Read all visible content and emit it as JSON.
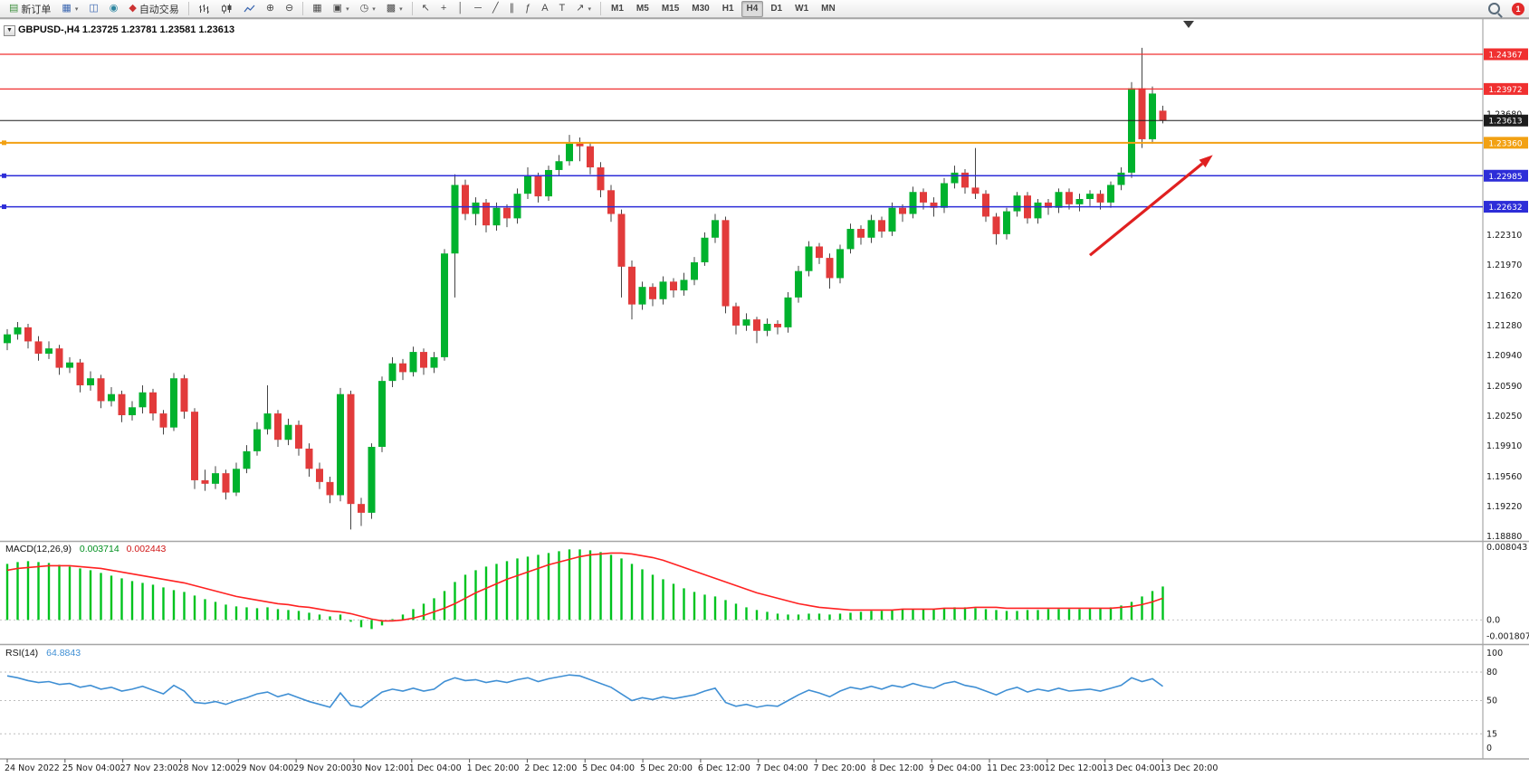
{
  "toolbar": {
    "new_order_label": "新订单",
    "autotrading_label": "自动交易",
    "timeframes": [
      "M1",
      "M5",
      "M15",
      "M30",
      "H1",
      "H4",
      "D1",
      "W1",
      "MN"
    ],
    "active_timeframe": "H4",
    "notification_count": "1",
    "icons": {
      "new_order": "▤",
      "charts": "▦",
      "profiles": "◫",
      "alerts": "◉",
      "autotrading": "◆",
      "zoom_in": "⊕",
      "zoom_out": "⊖",
      "tile_windows": "▦",
      "new_chart": "▣",
      "period": "◷",
      "templates": "▩",
      "cursor": "↖",
      "crosshair": "+",
      "vline": "│",
      "hline": "─",
      "trendline": "╱",
      "channel": "∥",
      "fibonacci": "ƒ",
      "text": "A",
      "label": "T",
      "arrows": "↗",
      "caret": "▾",
      "dropdown": "▼"
    }
  },
  "chart": {
    "title": "GBPUSD-,H4",
    "ohlc": "1.23725 1.23781 1.23581 1.23613"
  },
  "chart_data": {
    "type": "candlestick",
    "symbol": "GBPUSD-",
    "period": "H4",
    "current": {
      "open": 1.23725,
      "high": 1.23781,
      "low": 1.23581,
      "close": 1.23613
    },
    "price_range": [
      1.1884,
      1.24758
    ],
    "colors": {
      "bull": "#00b22d",
      "bear": "#e23b3b",
      "wick": "#444444",
      "bg": "#ffffff"
    },
    "candles": [
      [
        1.2108,
        1.2124,
        1.21,
        1.2118
      ],
      [
        1.2118,
        1.2132,
        1.2112,
        1.2126
      ],
      [
        1.2126,
        1.213,
        1.2102,
        1.211
      ],
      [
        1.211,
        1.2116,
        1.2088,
        1.2096
      ],
      [
        1.2096,
        1.211,
        1.209,
        1.2102
      ],
      [
        1.2102,
        1.2106,
        1.2072,
        1.208
      ],
      [
        1.208,
        1.2092,
        1.2074,
        1.2086
      ],
      [
        1.2086,
        1.209,
        1.2052,
        1.206
      ],
      [
        1.206,
        1.2076,
        1.2054,
        1.2068
      ],
      [
        1.2068,
        1.2072,
        1.2034,
        1.2042
      ],
      [
        1.2042,
        1.2058,
        1.2036,
        1.205
      ],
      [
        1.205,
        1.2054,
        1.2018,
        1.2026
      ],
      [
        1.2026,
        1.2042,
        1.202,
        1.2035
      ],
      [
        1.2035,
        1.206,
        1.2028,
        1.2052
      ],
      [
        1.2052,
        1.2056,
        1.202,
        1.2028
      ],
      [
        1.2028,
        1.2032,
        1.2004,
        1.2012
      ],
      [
        1.2012,
        1.2074,
        1.2008,
        1.2068
      ],
      [
        1.2068,
        1.2072,
        1.2022,
        1.203
      ],
      [
        1.203,
        1.2034,
        1.1942,
        1.1952
      ],
      [
        1.1952,
        1.1964,
        1.194,
        1.1948
      ],
      [
        1.1948,
        1.1968,
        1.1942,
        1.196
      ],
      [
        1.196,
        1.1964,
        1.193,
        1.1938
      ],
      [
        1.1938,
        1.1972,
        1.1934,
        1.1965
      ],
      [
        1.1965,
        1.1992,
        1.196,
        1.1985
      ],
      [
        1.1985,
        1.2018,
        1.198,
        1.201
      ],
      [
        1.201,
        1.206,
        1.2004,
        1.2028
      ],
      [
        1.2028,
        1.2032,
        1.199,
        1.1998
      ],
      [
        1.1998,
        1.2022,
        1.1992,
        1.2015
      ],
      [
        1.2015,
        1.202,
        1.198,
        1.1988
      ],
      [
        1.1988,
        1.1994,
        1.1956,
        1.1965
      ],
      [
        1.1965,
        1.1972,
        1.1942,
        1.195
      ],
      [
        1.195,
        1.1956,
        1.1926,
        1.1935
      ],
      [
        1.1935,
        1.2057,
        1.1928,
        1.205
      ],
      [
        1.205,
        1.2054,
        1.1896,
        1.1925
      ],
      [
        1.1925,
        1.1932,
        1.19,
        1.1915
      ],
      [
        1.1915,
        1.1994,
        1.1908,
        1.199
      ],
      [
        1.199,
        1.207,
        1.1984,
        1.2065
      ],
      [
        1.2065,
        1.2092,
        1.2058,
        1.2085
      ],
      [
        1.2085,
        1.209,
        1.2066,
        1.2075
      ],
      [
        1.2075,
        1.2104,
        1.207,
        1.2098
      ],
      [
        1.2098,
        1.2102,
        1.2072,
        1.208
      ],
      [
        1.208,
        1.2098,
        1.2074,
        1.2092
      ],
      [
        1.2092,
        1.2215,
        1.2088,
        1.221
      ],
      [
        1.221,
        1.23,
        1.216,
        1.2288
      ],
      [
        1.2288,
        1.2294,
        1.2248,
        1.2255
      ],
      [
        1.2255,
        1.2274,
        1.2242,
        1.2268
      ],
      [
        1.2268,
        1.2272,
        1.2234,
        1.2242
      ],
      [
        1.2242,
        1.2268,
        1.2236,
        1.2262
      ],
      [
        1.2262,
        1.2266,
        1.224,
        1.225
      ],
      [
        1.225,
        1.2284,
        1.2244,
        1.2278
      ],
      [
        1.2278,
        1.2308,
        1.2272,
        1.2298
      ],
      [
        1.2298,
        1.2302,
        1.2268,
        1.2275
      ],
      [
        1.2275,
        1.231,
        1.227,
        1.2305
      ],
      [
        1.2305,
        1.2322,
        1.2298,
        1.2315
      ],
      [
        1.2315,
        1.2345,
        1.231,
        1.2335
      ],
      [
        1.2335,
        1.2342,
        1.2315,
        1.2332
      ],
      [
        1.2332,
        1.2336,
        1.23,
        1.2308
      ],
      [
        1.2308,
        1.2314,
        1.2274,
        1.2282
      ],
      [
        1.2282,
        1.2288,
        1.2246,
        1.2255
      ],
      [
        1.2255,
        1.226,
        1.216,
        1.2195
      ],
      [
        1.2195,
        1.2202,
        1.2135,
        1.2152
      ],
      [
        1.2152,
        1.2178,
        1.2146,
        1.2172
      ],
      [
        1.2172,
        1.2176,
        1.215,
        1.2158
      ],
      [
        1.2158,
        1.2184,
        1.2152,
        1.2178
      ],
      [
        1.2178,
        1.2182,
        1.216,
        1.2168
      ],
      [
        1.2168,
        1.2188,
        1.2162,
        1.218
      ],
      [
        1.218,
        1.2206,
        1.2174,
        1.22
      ],
      [
        1.22,
        1.2234,
        1.2196,
        1.2228
      ],
      [
        1.2228,
        1.2255,
        1.2222,
        1.2248
      ],
      [
        1.2248,
        1.2252,
        1.2142,
        1.215
      ],
      [
        1.215,
        1.2154,
        1.2118,
        1.2128
      ],
      [
        1.2128,
        1.2142,
        1.2122,
        1.2135
      ],
      [
        1.2135,
        1.2138,
        1.2108,
        1.2122
      ],
      [
        1.2122,
        1.2136,
        1.2116,
        1.213
      ],
      [
        1.213,
        1.2134,
        1.2118,
        1.2126
      ],
      [
        1.2126,
        1.2166,
        1.212,
        1.216
      ],
      [
        1.216,
        1.2196,
        1.2154,
        1.219
      ],
      [
        1.219,
        1.2224,
        1.2184,
        1.2218
      ],
      [
        1.2218,
        1.2222,
        1.2198,
        1.2205
      ],
      [
        1.2205,
        1.221,
        1.217,
        1.2182
      ],
      [
        1.2182,
        1.222,
        1.2176,
        1.2215
      ],
      [
        1.2215,
        1.2244,
        1.221,
        1.2238
      ],
      [
        1.2238,
        1.2242,
        1.222,
        1.2228
      ],
      [
        1.2228,
        1.2254,
        1.2222,
        1.2248
      ],
      [
        1.2248,
        1.2252,
        1.2228,
        1.2235
      ],
      [
        1.2235,
        1.2268,
        1.223,
        1.2262
      ],
      [
        1.2262,
        1.2266,
        1.2246,
        1.2255
      ],
      [
        1.2255,
        1.2286,
        1.225,
        1.228
      ],
      [
        1.228,
        1.2284,
        1.226,
        1.2268
      ],
      [
        1.2268,
        1.2274,
        1.2252,
        1.2262
      ],
      [
        1.2262,
        1.2296,
        1.2256,
        1.229
      ],
      [
        1.229,
        1.231,
        1.2284,
        1.2302
      ],
      [
        1.2302,
        1.2306,
        1.2278,
        1.2285
      ],
      [
        1.2285,
        1.233,
        1.2272,
        1.2278
      ],
      [
        1.2278,
        1.2282,
        1.2246,
        1.2252
      ],
      [
        1.2252,
        1.2256,
        1.222,
        1.2232
      ],
      [
        1.2232,
        1.2262,
        1.2226,
        1.2258
      ],
      [
        1.2258,
        1.228,
        1.2252,
        1.2276
      ],
      [
        1.2276,
        1.228,
        1.2244,
        1.225
      ],
      [
        1.225,
        1.2272,
        1.2244,
        1.2268
      ],
      [
        1.2268,
        1.2272,
        1.2254,
        1.2262
      ],
      [
        1.2262,
        1.2284,
        1.2256,
        1.228
      ],
      [
        1.228,
        1.2284,
        1.226,
        1.2266
      ],
      [
        1.2266,
        1.2278,
        1.2258,
        1.2272
      ],
      [
        1.2272,
        1.2282,
        1.2264,
        1.2278
      ],
      [
        1.2278,
        1.2282,
        1.226,
        1.2268
      ],
      [
        1.2268,
        1.2292,
        1.2262,
        1.2288
      ],
      [
        1.2288,
        1.2308,
        1.2282,
        1.2302
      ],
      [
        1.2302,
        1.2405,
        1.2296,
        1.2398
      ],
      [
        1.2398,
        1.2444,
        1.233,
        1.234
      ],
      [
        1.234,
        1.24,
        1.2335,
        1.2392
      ],
      [
        1.23725,
        1.23781,
        1.23581,
        1.23613
      ]
    ],
    "hlines": [
      {
        "price": 1.24367,
        "label": "1.24367",
        "color": "#f03030",
        "width": 1.3,
        "kind": "resistance",
        "handle": false
      },
      {
        "price": 1.23972,
        "label": "1.23972",
        "color": "#f03030",
        "width": 1.3,
        "kind": "resistance",
        "handle": false
      },
      {
        "price": 1.23613,
        "label": "1.23613",
        "color": "#1c1c1c",
        "width": 1,
        "kind": "current-price",
        "handle": false
      },
      {
        "price": 1.2336,
        "label": "1.23360",
        "color": "#f2a113",
        "width": 2,
        "kind": "level",
        "handle": true
      },
      {
        "price": 1.22985,
        "label": "1.22985",
        "color": "#2d2dd8",
        "width": 1.5,
        "kind": "support",
        "handle": true
      },
      {
        "price": 1.22632,
        "label": "1.22632",
        "color": "#2d2dd8",
        "width": 1.5,
        "kind": "support",
        "handle": true
      }
    ],
    "axis_labels": [
      {
        "text": "1.23680",
        "price": 1.2368
      },
      {
        "text": "1.22310",
        "price": 1.2231
      },
      {
        "text": "1.21970",
        "price": 1.2197
      },
      {
        "text": "1.21620",
        "price": 1.2162
      },
      {
        "text": "1.21280",
        "price": 1.2128
      },
      {
        "text": "1.20940",
        "price": 1.2094
      },
      {
        "text": "1.20590",
        "price": 1.2059
      },
      {
        "text": "1.20250",
        "price": 1.2025
      },
      {
        "text": "1.19910",
        "price": 1.1991
      },
      {
        "text": "1.19560",
        "price": 1.1956
      },
      {
        "text": "1.19220",
        "price": 1.1922
      },
      {
        "text": "1.18880",
        "price": 1.1888
      }
    ],
    "time_labels": [
      "24 Nov 2022",
      "25 Nov 04:00",
      "27 Nov 23:00",
      "28 Nov 12:00",
      "29 Nov 04:00",
      "29 Nov 20:00",
      "30 Nov 12:00",
      "1 Dec 04:00",
      "1 Dec 20:00",
      "2 Dec 12:00",
      "5 Dec 04:00",
      "5 Dec 20:00",
      "6 Dec 12:00",
      "7 Dec 04:00",
      "7 Dec 20:00",
      "8 Dec 12:00",
      "9 Dec 04:00",
      "11 Dec 23:00",
      "12 Dec 12:00",
      "13 Dec 04:00",
      "13 Dec 20:00"
    ],
    "trend_arrow": {
      "start": {
        "i": 104,
        "p": 1.2208
      },
      "end": {
        "i": 115.8,
        "p": 1.2322
      },
      "color": "#e02020"
    },
    "indicators": {
      "macd": {
        "name": "MACD(12,26,9)",
        "value": "0.003714",
        "signal_value": "0.002443",
        "unit": 0.0001,
        "histogram_color": "#00c31e",
        "signal_color": "#ff2121",
        "axis_labels": [
          {
            "text": "0.008043",
            "v": 80.43
          },
          {
            "text": "0.0",
            "v": 0
          },
          {
            "text": "-0.001807",
            "v": -18.07
          }
        ],
        "histogram": [
          62,
          64,
          65,
          64,
          63,
          61,
          59,
          57,
          55,
          52,
          49,
          46,
          43,
          41,
          39,
          36,
          33,
          31,
          27,
          23,
          20,
          17,
          15,
          14,
          13,
          14,
          12,
          11,
          10,
          8,
          6,
          4,
          6,
          -2,
          -8,
          -10,
          -6,
          0,
          6,
          12,
          18,
          24,
          32,
          42,
          50,
          55,
          59,
          62,
          65,
          68,
          70,
          72,
          74,
          76,
          78,
          78,
          77,
          75,
          72,
          68,
          62,
          56,
          50,
          45,
          40,
          35,
          31,
          28,
          26,
          22,
          18,
          14,
          11,
          9,
          7,
          6,
          6,
          7,
          7,
          6,
          7,
          8,
          9,
          10,
          10,
          11,
          12,
          12,
          12,
          12,
          13,
          14,
          14,
          13,
          12,
          11,
          10,
          10,
          11,
          11,
          12,
          12,
          12,
          12,
          13,
          13,
          14,
          16,
          20,
          26,
          32,
          37
        ],
        "signal": [
          55,
          57,
          58,
          59,
          60,
          60,
          60,
          59,
          58,
          57,
          55,
          53,
          51,
          49,
          47,
          45,
          43,
          41,
          38,
          35,
          32,
          29,
          26,
          24,
          22,
          20,
          18,
          17,
          15,
          14,
          12,
          10,
          9,
          7,
          4,
          1,
          -1,
          -1,
          0,
          2,
          5,
          9,
          13,
          18,
          24,
          30,
          35,
          40,
          45,
          49,
          53,
          57,
          61,
          64,
          67,
          70,
          72,
          73,
          74,
          74,
          73,
          71,
          69,
          66,
          62,
          58,
          54,
          50,
          46,
          42,
          38,
          34,
          30,
          27,
          24,
          21,
          18,
          16,
          14,
          13,
          12,
          11,
          11,
          11,
          11,
          11,
          12,
          12,
          12,
          12,
          13,
          13,
          13,
          14,
          14,
          14,
          13,
          13,
          13,
          13,
          13,
          13,
          13,
          13,
          13,
          13,
          13,
          14,
          15,
          17,
          20,
          24
        ]
      },
      "rsi": {
        "name": "RSI(14)",
        "value": "64.8843",
        "color": "#3f8fd4",
        "range": [
          0,
          100
        ],
        "period_levels": [
          80,
          50,
          15
        ],
        "axis_labels": [
          {
            "text": "100",
            "v": 100
          },
          {
            "text": "80",
            "v": 80
          },
          {
            "text": "50",
            "v": 50
          },
          {
            "text": "15",
            "v": 15
          },
          {
            "text": "0",
            "v": 0
          }
        ],
        "values": [
          76,
          74,
          71,
          69,
          70,
          67,
          68,
          64,
          66,
          62,
          64,
          60,
          62,
          65,
          61,
          57,
          66,
          60,
          48,
          47,
          49,
          46,
          50,
          53,
          57,
          59,
          54,
          57,
          53,
          49,
          46,
          43,
          58,
          45,
          43,
          51,
          59,
          62,
          60,
          63,
          60,
          62,
          70,
          74,
          71,
          72,
          69,
          71,
          69,
          72,
          74,
          70,
          73,
          75,
          77,
          76,
          72,
          68,
          64,
          57,
          50,
          53,
          51,
          54,
          52,
          54,
          56,
          60,
          63,
          48,
          44,
          46,
          43,
          45,
          44,
          50,
          56,
          61,
          58,
          54,
          60,
          64,
          62,
          65,
          62,
          66,
          64,
          68,
          65,
          63,
          68,
          70,
          66,
          64,
          60,
          56,
          61,
          64,
          59,
          62,
          60,
          63,
          60,
          61,
          62,
          60,
          63,
          66,
          74,
          70,
          73,
          65
        ]
      }
    }
  }
}
